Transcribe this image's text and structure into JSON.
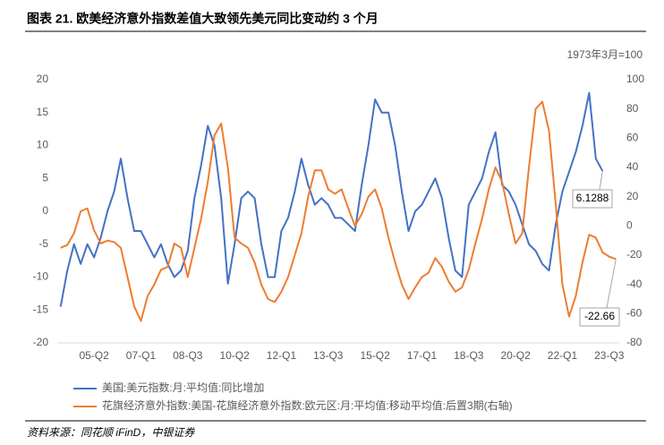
{
  "chart_data": {
    "type": "line",
    "title": "图表 21. 欧美经济意外指数差值大致领先美元同比变动约 3 个月",
    "y2_label": "1973年3月=100",
    "source": "资料来源：同花顺 iFinD，中银证券",
    "categories": [
      null,
      null,
      null,
      null,
      null,
      "05-Q2",
      null,
      null,
      null,
      null,
      null,
      null,
      "07-Q1",
      null,
      null,
      null,
      null,
      null,
      null,
      "08-Q3",
      null,
      null,
      null,
      null,
      null,
      null,
      "10-Q2",
      null,
      null,
      null,
      null,
      null,
      null,
      "12-Q1",
      null,
      null,
      null,
      null,
      null,
      null,
      "13-Q3",
      null,
      null,
      null,
      null,
      null,
      null,
      "15-Q2",
      null,
      null,
      null,
      null,
      null,
      null,
      "17-Q1",
      null,
      null,
      null,
      null,
      null,
      null,
      "18-Q3",
      null,
      null,
      null,
      null,
      null,
      null,
      "20-Q2",
      null,
      null,
      null,
      null,
      null,
      null,
      "22-Q1",
      null,
      null,
      null,
      null,
      null,
      null,
      "23-Q3",
      null
    ],
    "series": [
      {
        "name": "美国:美元指数:月:平均值:同比增加",
        "color": "#4472c4",
        "axis": "y",
        "values": [
          -14.5,
          -9,
          -5,
          -8,
          -5,
          -7,
          -4,
          0,
          3,
          8,
          2,
          -3,
          -3,
          -5,
          -7,
          -5,
          -8,
          -10,
          -9,
          -6,
          2,
          7,
          13,
          10,
          2,
          -11,
          -5,
          2,
          3,
          2,
          -5,
          -10,
          -10,
          -3,
          -1,
          3,
          8,
          4,
          1,
          2,
          1,
          -1,
          -1,
          -2,
          -3,
          4,
          10,
          17,
          15,
          15,
          10,
          3,
          -3,
          0,
          1,
          3,
          5,
          2,
          -4,
          -9,
          -10,
          1,
          3,
          5,
          9,
          12,
          4,
          3,
          1,
          -2,
          -5,
          -6,
          -8,
          -9,
          -2,
          3,
          6,
          9,
          13,
          18,
          8,
          6.1288,
          null,
          null
        ]
      },
      {
        "name": "花旗经济意外指数:美国-花旗经济意外指数:欧元区:月:平均值:移动平均值:后置3期(右轴)",
        "color": "#ed7d31",
        "axis": "y2",
        "values": [
          -15,
          -13,
          -5,
          10,
          12,
          -3,
          -12,
          -10,
          -11,
          -15,
          -35,
          -55,
          -65,
          -48,
          -40,
          -30,
          -28,
          -12,
          -15,
          -35,
          -15,
          5,
          30,
          62,
          70,
          40,
          -8,
          -12,
          -15,
          -25,
          -40,
          -50,
          -52,
          -45,
          -35,
          -20,
          -5,
          20,
          38,
          38,
          25,
          22,
          25,
          12,
          0,
          8,
          20,
          25,
          12,
          -8,
          -25,
          -40,
          -50,
          -42,
          -35,
          -32,
          -22,
          -28,
          -38,
          -45,
          -42,
          -30,
          -12,
          5,
          25,
          40,
          30,
          8,
          -12,
          -5,
          40,
          80,
          85,
          65,
          15,
          -40,
          -62,
          -48,
          -25,
          -6,
          -8,
          -18,
          -21,
          -22.66
        ]
      }
    ],
    "ylim": [
      -20,
      20
    ],
    "yticks": [
      -20,
      -15,
      -10,
      -5,
      0,
      5,
      10,
      15,
      20
    ],
    "y2lim": [
      -80,
      100
    ],
    "y2ticks": [
      -80,
      -60,
      -40,
      -20,
      0,
      20,
      40,
      60,
      80,
      100
    ],
    "grid": false
  }
}
